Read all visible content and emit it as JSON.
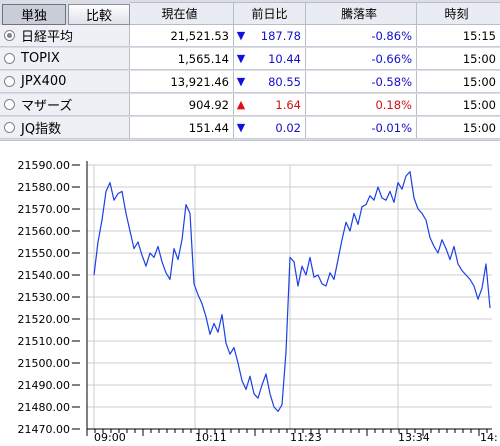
{
  "tabs": [
    {
      "label": "単独",
      "active": true
    },
    {
      "label": "比較",
      "active": false
    }
  ],
  "columns": {
    "price": "現在値",
    "change": "前日比",
    "change_pct": "騰落率",
    "time": "時刻"
  },
  "rows": [
    {
      "name": "日経平均",
      "price": "21,521.53",
      "direction": "down",
      "change": "187.78",
      "change_pct": "-0.86%",
      "time": "15:15",
      "selected": true
    },
    {
      "name": "TOPIX",
      "price": "1,565.14",
      "direction": "down",
      "change": "10.44",
      "change_pct": "-0.66%",
      "time": "15:00",
      "selected": false
    },
    {
      "name": "JPX400",
      "price": "13,921.46",
      "direction": "down",
      "change": "80.55",
      "change_pct": "-0.58%",
      "time": "15:00",
      "selected": false
    },
    {
      "name": "マザーズ",
      "price": "904.92",
      "direction": "up",
      "change": "1.64",
      "change_pct": "0.18%",
      "time": "15:00",
      "selected": false
    },
    {
      "name": "JQ指数",
      "price": "151.44",
      "direction": "down",
      "change": "0.02",
      "change_pct": "-0.01%",
      "time": "15:00",
      "selected": false
    }
  ],
  "colors": {
    "line": "#1a3fe6",
    "down": "#1010e0",
    "up": "#e01010",
    "grid": "#cccccc"
  },
  "chart_data": {
    "type": "line",
    "ylim": [
      21470,
      21590
    ],
    "y_ticks": [
      "21590.00",
      "21580.00",
      "21570.00",
      "21560.00",
      "21550.00",
      "21540.00",
      "21530.00",
      "21520.00",
      "21510.00",
      "21500.00",
      "21490.00",
      "21480.00",
      "21470.00"
    ],
    "x_ticks": [
      "09:00",
      "10:11",
      "11:23",
      "13:34",
      "14:"
    ],
    "grid": true,
    "series": [
      {
        "values": [
          21540,
          21555,
          21565,
          21578,
          21582,
          21574,
          21577,
          21578,
          21568,
          21560,
          21552,
          21555,
          21549,
          21544,
          21550,
          21548,
          21553,
          21546,
          21541,
          21538,
          21552,
          21547,
          21556,
          21572,
          21568,
          21536,
          21531,
          21527,
          21521,
          21513,
          21518,
          21514,
          21522,
          21509,
          21504,
          21507,
          21500,
          21492,
          21488,
          21494,
          21486,
          21484,
          21490,
          21495,
          21486,
          21480,
          21478,
          21481,
          21505,
          21548,
          21546,
          21535,
          21544,
          21540,
          21548,
          21539,
          21540,
          21536,
          21535,
          21541,
          21538,
          21547,
          21556,
          21564,
          21560,
          21568,
          21563,
          21571,
          21572,
          21576,
          21574,
          21580,
          21575,
          21574,
          21578,
          21573,
          21582,
          21579,
          21585,
          21587,
          21575,
          21570,
          21568,
          21565,
          21557,
          21553,
          21550,
          21556,
          21552,
          21547,
          21553,
          21545,
          21542,
          21540,
          21538,
          21535,
          21529,
          21534,
          21545,
          21525
        ]
      }
    ]
  }
}
